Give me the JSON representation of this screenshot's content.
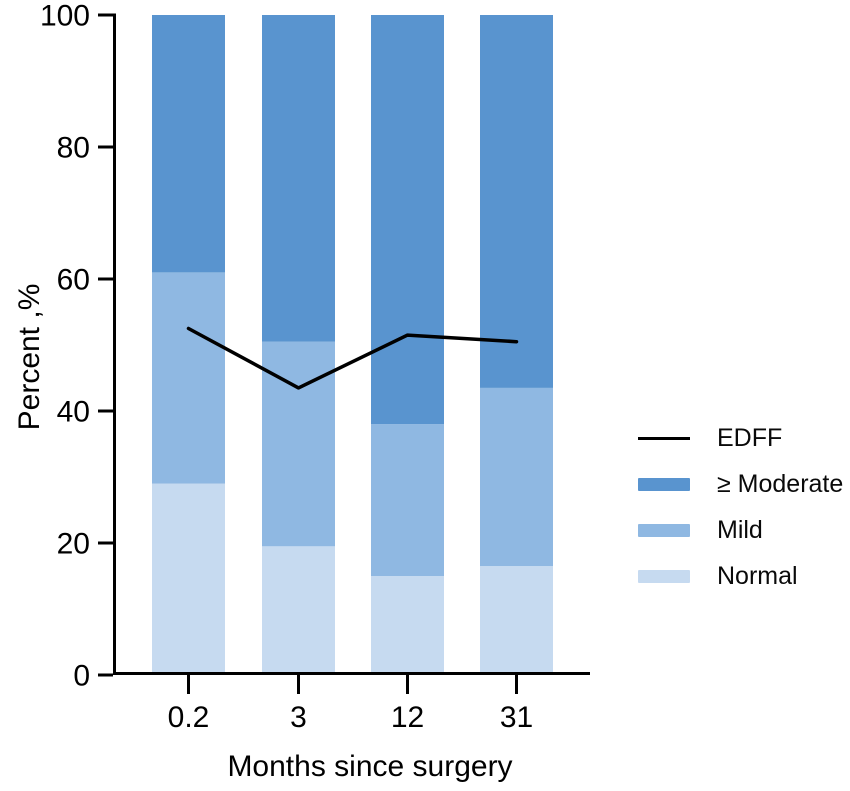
{
  "chart_data": {
    "type": "bar",
    "subtype": "stacked-bar-with-line-overlay",
    "categories": [
      "0.2",
      "3",
      "12",
      "31"
    ],
    "series": [
      {
        "name": "Normal",
        "color": "#c6daf0",
        "values": [
          29,
          19.5,
          15,
          16.5
        ]
      },
      {
        "name": "Mild",
        "color": "#8fb8e2",
        "values": [
          32,
          31,
          23,
          27
        ]
      },
      {
        "name": "≥ Moderate",
        "color": "#5994cf",
        "values": [
          39,
          49.5,
          62,
          56.5
        ]
      }
    ],
    "line_series": {
      "name": "EDFF",
      "color": "#000000",
      "values": [
        52.5,
        43.5,
        51.5,
        50.5
      ]
    },
    "title": "",
    "xlabel": "Months since surgery",
    "ylabel": "Percent ,%",
    "ylim": [
      0,
      100
    ],
    "yticks": [
      0,
      20,
      40,
      60,
      80,
      100
    ],
    "grid": "off",
    "legend_position": "right"
  },
  "legend": {
    "items": [
      {
        "label": "EDFF",
        "swatch": "line",
        "color": "#000000"
      },
      {
        "label": "≥ Moderate",
        "swatch": "rect",
        "color": "#5994cf"
      },
      {
        "label": "Mild",
        "swatch": "rect",
        "color": "#8fb8e2"
      },
      {
        "label": "Normal",
        "swatch": "rect",
        "color": "#c6daf0"
      }
    ]
  },
  "colors": {
    "axis": "#000000",
    "text": "#000000",
    "background": "#ffffff"
  }
}
